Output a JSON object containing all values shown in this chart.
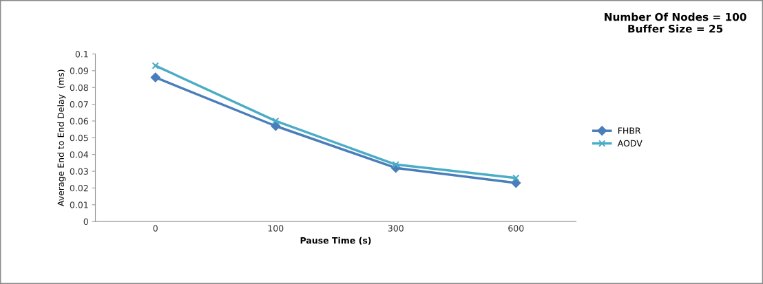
{
  "chart_data": {
    "type": "line",
    "title": "Number Of Nodes = 100\nBuffer Size = 25",
    "xlabel": "Pause Time (s)",
    "ylabel": "Average End to End Delay  (ms)",
    "categories": [
      "0",
      "100",
      "300",
      "600"
    ],
    "series": [
      {
        "name": "FHBR",
        "color": "#4a7ebb",
        "marker": "diamond",
        "values": [
          0.086,
          0.057,
          0.032,
          0.023
        ]
      },
      {
        "name": "AODV",
        "color": "#4bacc6",
        "marker": "cross",
        "values": [
          0.093,
          0.06,
          0.034,
          0.026
        ]
      }
    ],
    "ylim": [
      0,
      0.1
    ],
    "yticks": [
      {
        "value": 0,
        "label": "0"
      },
      0.01,
      0.02,
      0.03,
      0.04,
      0.05,
      0.06,
      0.07,
      0.08,
      0.09,
      0.1
    ],
    "grid": false,
    "legend": "right",
    "line_style": "solid"
  }
}
